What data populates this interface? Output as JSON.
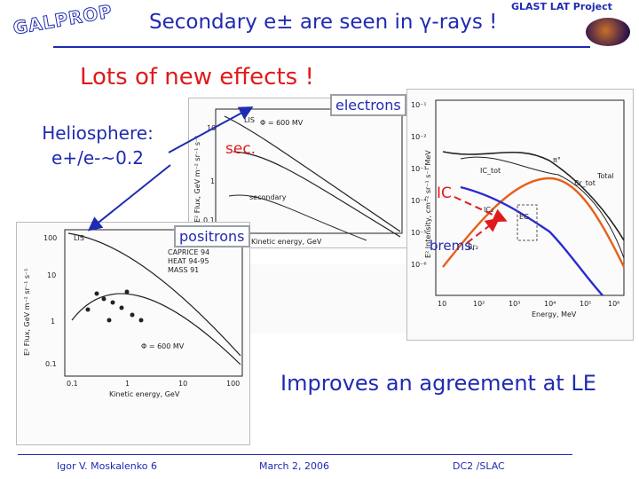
{
  "header": {
    "title": "Secondary e± are seen in γ-rays !",
    "logo": "GALPROP",
    "corner": "GLAST LAT Project"
  },
  "subtitle": "Lots of new effects !",
  "heliosphere": {
    "line1": "Heliosphere:",
    "line2": "e+/e-~0.2"
  },
  "labels": {
    "electrons": "electrons",
    "positrons": "positrons",
    "sec": "sec.",
    "ic": "IC",
    "brems": "brems."
  },
  "electron_plot": {
    "ylabel": "E² Flux, GeV m⁻² sr⁻¹ s⁻¹",
    "xlabel": "Kinetic energy, GeV",
    "curve_labels": {
      "lis": "LIS",
      "phi": "Φ = 600 MV",
      "secondary": "secondary"
    },
    "yticks": [
      "10",
      "1",
      "0.1"
    ]
  },
  "positron_plot": {
    "ylabel": "E² Flux, GeV m⁻² sr⁻¹ s⁻¹",
    "xlabel": "Kinetic energy, GeV",
    "lis": "LIS",
    "phi": "Φ = 600 MV",
    "legend": [
      "CAPRICE 94",
      "HEAT 94-95",
      "MASS 91"
    ],
    "yticks": [
      "100",
      "10",
      "1",
      "0.1"
    ],
    "xticks": [
      "0.1",
      "1",
      "10",
      "100"
    ]
  },
  "gamma_plot": {
    "ylabel": "E² Intensity, cm⁻² sr⁻¹ s⁻¹ MeV",
    "xlabel": "Energy, MeV",
    "labels": {
      "total": "Total",
      "ictot": "IC_tot",
      "brtot": "Br_tot",
      "ic2": "IC₂",
      "eg": "EG",
      "br2": "Br₂",
      "pi0": "π°"
    },
    "yticks": [
      "10⁻¹",
      "10⁻²",
      "10⁻³",
      "10⁻⁴",
      "10⁻⁵",
      "10⁻⁶"
    ],
    "xticks": [
      "10",
      "10²",
      "10³",
      "10⁴",
      "10⁵",
      "10⁶"
    ]
  },
  "bottom_text": "Improves an agreement at LE",
  "footer": {
    "author": "Igor V. Moskalenko 6",
    "date": "March 2, 2006",
    "venue": "DC2 /SLAC"
  },
  "colors": {
    "title": "#1f2bb0",
    "accent": "#e01a1a",
    "ic_curve": "#e8601a",
    "brems_curve": "#2b2bd0"
  }
}
